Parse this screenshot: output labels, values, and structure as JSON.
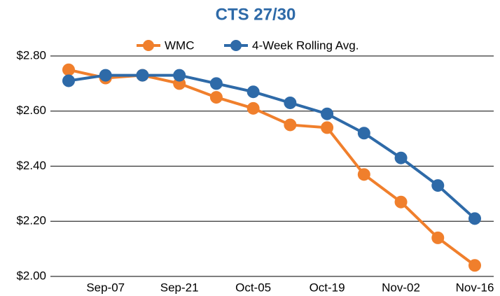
{
  "chart_data": {
    "type": "line",
    "title": "CTS 27/30",
    "categories": [
      null,
      "Sep-07",
      null,
      "Sep-21",
      null,
      "Oct-05",
      null,
      "Oct-19",
      null,
      "Nov-02",
      null,
      "Nov-16"
    ],
    "series": [
      {
        "name": "WMC",
        "color": "#f07f2c",
        "values": [
          2.75,
          2.72,
          2.73,
          2.7,
          2.65,
          2.61,
          2.55,
          2.54,
          2.37,
          2.27,
          2.14,
          2.04
        ]
      },
      {
        "name": "4-Week Rolling Avg.",
        "color": "#2e6aa8",
        "values": [
          2.71,
          2.73,
          2.73,
          2.73,
          2.7,
          2.67,
          2.63,
          2.59,
          2.52,
          2.43,
          2.33,
          2.21
        ]
      }
    ],
    "ylim": [
      2.0,
      2.8
    ],
    "yticks": [
      {
        "value": 2.0,
        "label": "$2.00"
      },
      {
        "value": 2.2,
        "label": "$2.20"
      },
      {
        "value": 2.4,
        "label": "$2.40"
      },
      {
        "value": 2.6,
        "label": "$2.60"
      },
      {
        "value": 2.8,
        "label": "$2.80"
      }
    ],
    "grid": true,
    "legend": "top",
    "title_color": "#2e6aa8"
  }
}
